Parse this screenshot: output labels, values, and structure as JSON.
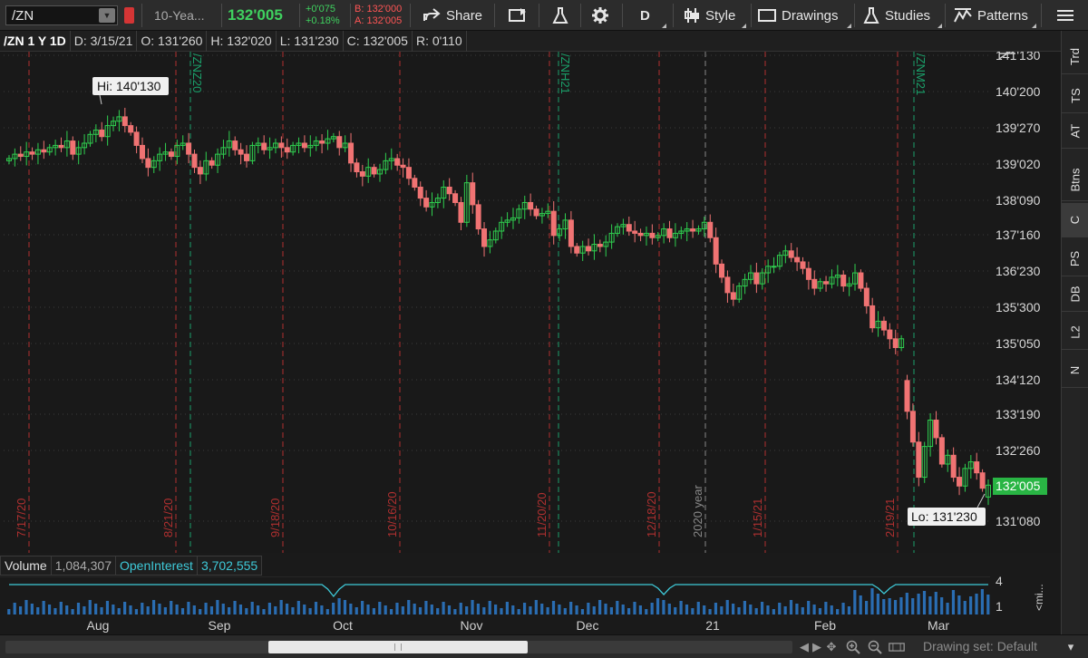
{
  "toolbar": {
    "symbol": "/ZN",
    "description": "10-Yea...",
    "last_price": "132'005",
    "net_change": "+0'075",
    "pct_change": "+0.18%",
    "bid": "B: 132'000",
    "ask": "A: 132'005",
    "share_label": "Share",
    "aggregation_label": "D",
    "style_label": "Style",
    "drawings_label": "Drawings",
    "studies_label": "Studies",
    "patterns_label": "Patterns"
  },
  "infobar": {
    "title": "/ZN 1 Y 1D",
    "date": "D: 3/15/21",
    "open": "O: 131'260",
    "high": "H: 132'020",
    "low": "L: 131'230",
    "close": "C: 132'005",
    "range": "R: 0'110"
  },
  "side_tabs": [
    "Trd",
    "TS",
    "AT",
    "Btns",
    "C",
    "PS",
    "DB",
    "L2",
    "N"
  ],
  "colors": {
    "up": "#2fcf4f",
    "down": "#f07373",
    "expiry_line": "#1aa06a",
    "event_line": "#b13030",
    "year_line": "#888888",
    "accent_price": "#29b544"
  },
  "chart_data": {
    "type": "candlestick",
    "title": "/ZN 1 Y 1D",
    "price_axis_ticks": [
      "141'130",
      "140'200",
      "139'270",
      "139'020",
      "138'090",
      "137'160",
      "136'230",
      "135'300",
      "135'050",
      "134'120",
      "133'190",
      "132'260",
      "131'080"
    ],
    "price_range": [
      130.5,
      141.8
    ],
    "last_price_label": "132'005",
    "hi_label": "Hi: 140'130",
    "lo_label": "Lo: 131'230",
    "expiry_markers": [
      "/ZNZ20",
      "/ZNH21",
      "/ZNM21"
    ],
    "event_dates": [
      "7/17/20",
      "8/21/20",
      "9/18/20",
      "10/16/20",
      "11/20/20",
      "12/18/20",
      "1/15/21",
      "2/19/21"
    ],
    "year_marker": "2020 year",
    "month_labels": [
      "Aug",
      "Sep",
      "Oct",
      "Nov",
      "Dec",
      "21",
      "Feb",
      "Mar"
    ],
    "closes": [
      139.45,
      139.55,
      139.5,
      139.6,
      139.55,
      139.65,
      139.6,
      139.7,
      139.75,
      139.7,
      139.85,
      139.55,
      139.7,
      139.8,
      140.0,
      140.1,
      139.95,
      140.2,
      140.3,
      140.4,
      140.2,
      140.05,
      139.75,
      139.45,
      139.25,
      139.4,
      139.55,
      139.6,
      139.5,
      139.75,
      139.8,
      139.55,
      139.25,
      139.1,
      139.4,
      139.3,
      139.55,
      139.7,
      139.85,
      139.65,
      139.55,
      139.4,
      139.75,
      139.8,
      139.65,
      139.7,
      139.8,
      139.7,
      139.6,
      139.75,
      139.8,
      139.7,
      139.75,
      139.85,
      139.8,
      139.9,
      139.95,
      139.7,
      139.8,
      139.35,
      139.15,
      139.05,
      139.25,
      139.1,
      139.2,
      139.4,
      139.45,
      139.3,
      139.25,
      139.0,
      138.8,
      138.55,
      138.35,
      138.45,
      138.55,
      138.8,
      138.65,
      138.45,
      138.0,
      138.9,
      138.4,
      137.85,
      137.45,
      137.6,
      137.8,
      138.0,
      138.05,
      138.1,
      138.3,
      138.45,
      138.3,
      138.15,
      138.2,
      138.25,
      137.7,
      137.85,
      138.05,
      137.45,
      137.3,
      137.45,
      137.35,
      137.5,
      137.45,
      137.55,
      137.75,
      137.9,
      137.95,
      137.8,
      137.75,
      137.7,
      137.75,
      137.65,
      137.7,
      137.85,
      137.65,
      137.75,
      137.8,
      137.85,
      137.8,
      137.85,
      138.0,
      137.65,
      137.05,
      136.75,
      136.4,
      136.25,
      136.55,
      136.7,
      136.85,
      136.6,
      136.85,
      137.0,
      137.0,
      137.25,
      137.35,
      137.2,
      137.1,
      136.95,
      136.7,
      136.5,
      136.65,
      136.6,
      136.75,
      136.8,
      136.55,
      136.6,
      136.85,
      136.5,
      136.1,
      135.6,
      135.75,
      135.55,
      135.35,
      135.15,
      135.35,
      133.7,
      133.0,
      132.2,
      132.9,
      133.5,
      133.1,
      132.5,
      132.7,
      132.2,
      132.0,
      132.4,
      132.55,
      132.3,
      131.95,
      132.02
    ],
    "opens": [
      139.4,
      139.45,
      139.55,
      139.5,
      139.6,
      139.55,
      139.65,
      139.6,
      139.7,
      139.75,
      139.7,
      139.85,
      139.55,
      139.7,
      139.8,
      140.0,
      140.1,
      139.95,
      140.2,
      140.3,
      140.4,
      140.2,
      140.05,
      139.75,
      139.45,
      139.25,
      139.4,
      139.55,
      139.6,
      139.5,
      139.75,
      139.8,
      139.55,
      139.25,
      139.1,
      139.4,
      139.3,
      139.55,
      139.7,
      139.85,
      139.65,
      139.55,
      139.4,
      139.75,
      139.8,
      139.65,
      139.7,
      139.8,
      139.7,
      139.6,
      139.75,
      139.8,
      139.7,
      139.75,
      139.85,
      139.8,
      139.9,
      139.95,
      139.7,
      139.8,
      139.35,
      139.15,
      139.05,
      139.25,
      139.1,
      139.2,
      139.4,
      139.45,
      139.3,
      139.25,
      139.0,
      138.8,
      138.55,
      138.35,
      138.45,
      138.55,
      138.8,
      138.65,
      138.45,
      138.0,
      138.9,
      138.4,
      137.85,
      137.45,
      137.6,
      137.8,
      138.0,
      138.05,
      138.1,
      138.3,
      138.45,
      138.3,
      138.15,
      138.2,
      138.25,
      137.7,
      137.85,
      138.05,
      137.45,
      137.3,
      137.45,
      137.35,
      137.5,
      137.45,
      137.55,
      137.75,
      137.9,
      137.95,
      137.8,
      137.75,
      137.7,
      137.75,
      137.65,
      137.7,
      137.85,
      137.65,
      137.75,
      137.8,
      137.85,
      137.8,
      137.85,
      138.0,
      137.65,
      137.05,
      136.75,
      136.4,
      136.25,
      136.55,
      136.7,
      136.85,
      136.6,
      136.85,
      137.0,
      137.0,
      137.25,
      137.35,
      137.2,
      137.1,
      136.95,
      136.7,
      136.5,
      136.65,
      136.6,
      136.75,
      136.8,
      136.55,
      136.6,
      136.85,
      136.5,
      136.1,
      135.6,
      135.75,
      135.55,
      135.35,
      135.15,
      134.4,
      133.7,
      133.0,
      132.2,
      132.9,
      133.5,
      133.1,
      132.5,
      132.7,
      132.2,
      132.0,
      132.4,
      132.55,
      132.3,
      131.75
    ],
    "volume_ticks": [
      "4",
      "1"
    ],
    "volume_label": "Volume",
    "volume_value": "1,084,307",
    "oi_label": "OpenInterest",
    "oi_value": "3,702,555",
    "volume_more_label": "<mi..."
  },
  "footer": {
    "drawing_set": "Drawing set: Default"
  }
}
